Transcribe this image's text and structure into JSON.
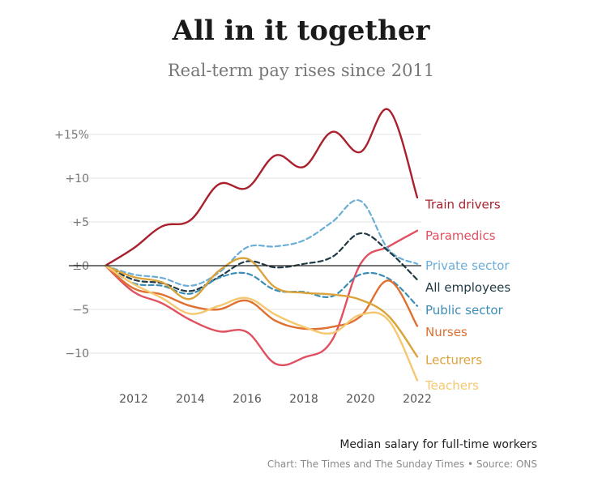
{
  "chart_data": {
    "type": "line",
    "title": "All in it together",
    "subtitle": "Real-term pay rises since 2011",
    "xlabel": "",
    "ylabel": "",
    "xlim": [
      2011,
      2022
    ],
    "ylim": [
      -13,
      17
    ],
    "x_ticks": [
      2012,
      2014,
      2016,
      2018,
      2020,
      2022
    ],
    "x_tick_labels": [
      "2012",
      "2014",
      "2016",
      "2018",
      "2020",
      "2022"
    ],
    "y_ticks": [
      15,
      10,
      5,
      0,
      -5,
      -10
    ],
    "y_tick_labels": [
      "+15%",
      "+10",
      "+5",
      "±0",
      "−5",
      "−10"
    ],
    "zero_line": true,
    "gridlines": "horizontal",
    "legend": "direct labels at right",
    "series": [
      {
        "name": "Train drivers",
        "color": "#a8212d",
        "dashed": false,
        "x": [
          2011,
          2012,
          2013,
          2014,
          2015,
          2016,
          2017,
          2018,
          2019,
          2020,
          2021,
          2022
        ],
        "values": [
          0,
          2.0,
          4.5,
          5.2,
          9.3,
          8.9,
          12.6,
          11.3,
          15.3,
          13.0,
          17.8,
          7.8
        ]
      },
      {
        "name": "Paramedics",
        "color": "#e05060",
        "dashed": false,
        "x": [
          2011,
          2012,
          2013,
          2014,
          2015,
          2016,
          2017,
          2018,
          2019,
          2020,
          2021,
          2022
        ],
        "values": [
          0,
          -3.0,
          -4.3,
          -6.2,
          -7.5,
          -7.6,
          -11.2,
          -10.5,
          -8.5,
          0.2,
          2.2,
          4.0
        ]
      },
      {
        "name": "Private sector",
        "color": "#6aaed6",
        "dashed": true,
        "x": [
          2011,
          2012,
          2013,
          2014,
          2015,
          2016,
          2017,
          2018,
          2019,
          2020,
          2021,
          2022
        ],
        "values": [
          0,
          -1.0,
          -1.4,
          -2.3,
          -0.8,
          2.1,
          2.2,
          2.9,
          5.0,
          7.4,
          1.8,
          0.2
        ]
      },
      {
        "name": "All employees",
        "color": "#1f3a46",
        "dashed": true,
        "x": [
          2011,
          2012,
          2013,
          2014,
          2015,
          2016,
          2017,
          2018,
          2019,
          2020,
          2021,
          2022
        ],
        "values": [
          0,
          -1.6,
          -2.0,
          -2.9,
          -1.3,
          0.5,
          -0.2,
          0.2,
          1.0,
          3.7,
          1.6,
          -1.6
        ]
      },
      {
        "name": "Public sector",
        "color": "#3b8db5",
        "dashed": true,
        "x": [
          2011,
          2012,
          2013,
          2014,
          2015,
          2016,
          2017,
          2018,
          2019,
          2020,
          2021,
          2022
        ],
        "values": [
          0,
          -2.0,
          -2.3,
          -3.2,
          -1.4,
          -0.9,
          -2.8,
          -3.0,
          -3.5,
          -1.0,
          -1.5,
          -4.6
        ]
      },
      {
        "name": "Nurses",
        "color": "#e07030",
        "dashed": false,
        "x": [
          2011,
          2012,
          2013,
          2014,
          2015,
          2016,
          2017,
          2018,
          2019,
          2020,
          2021,
          2022
        ],
        "values": [
          0,
          -2.6,
          -3.3,
          -4.6,
          -5.0,
          -4.0,
          -6.3,
          -7.2,
          -7.0,
          -5.8,
          -1.7,
          -6.9
        ]
      },
      {
        "name": "Lecturers",
        "color": "#dba33a",
        "dashed": false,
        "x": [
          2011,
          2012,
          2013,
          2014,
          2015,
          2016,
          2017,
          2018,
          2019,
          2020,
          2021,
          2022
        ],
        "values": [
          0,
          -1.3,
          -1.9,
          -3.8,
          -0.6,
          0.8,
          -2.5,
          -3.1,
          -3.3,
          -3.9,
          -5.8,
          -10.4
        ]
      },
      {
        "name": "Teachers",
        "color": "#f5c870",
        "dashed": false,
        "x": [
          2011,
          2012,
          2013,
          2014,
          2015,
          2016,
          2017,
          2018,
          2019,
          2020,
          2021,
          2022
        ],
        "values": [
          0,
          -2.1,
          -3.7,
          -5.5,
          -4.6,
          -3.7,
          -5.6,
          -7.0,
          -7.7,
          -5.6,
          -6.3,
          -13.1
        ]
      }
    ],
    "label_positions": {
      "Train drivers": 7.1,
      "Paramedics": 3.5,
      "Private sector": 0.1,
      "All employees": -2.4,
      "Public sector": -5.0,
      "Nurses": -7.5,
      "Lecturers": -10.7,
      "Teachers": -13.6
    }
  },
  "footer": {
    "note": "Median salary for full-time workers",
    "credit": "Chart: The Times and The Sunday Times • Source: ONS"
  }
}
